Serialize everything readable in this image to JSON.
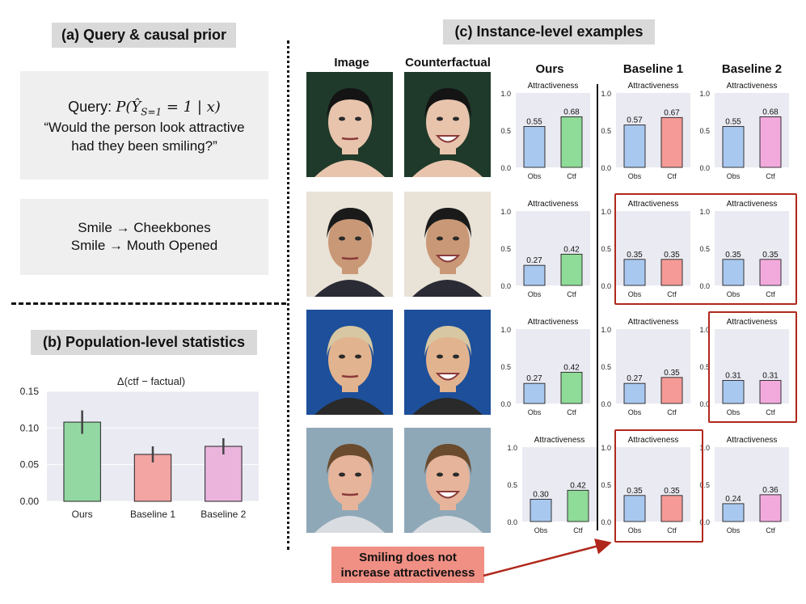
{
  "panel_a": {
    "title": "(a) Query & causal prior",
    "query_label": "Query:",
    "query_formula": "P(Ŷ",
    "query_subscript": "S=1",
    "query_rest": " = 1 | x)",
    "question_line1": "“Would the person look attractive",
    "question_line2": "had they been smiling?”",
    "prior_line1": "Smile → Cheekbones",
    "prior_line2": "Smile → Mouth Opened"
  },
  "panel_b": {
    "title": "(b) Population-level statistics"
  },
  "panel_c": {
    "title": "(c) Instance-level examples",
    "col_image": "Image",
    "col_counterfactual": "Counterfactual",
    "col_ours": "Ours",
    "col_baseline1": "Baseline 1",
    "col_baseline2": "Baseline 2"
  },
  "note": {
    "line1": "Smiling does not",
    "line2": "increase attractiveness"
  },
  "colors": {
    "obs": "#a9c8ef",
    "ours": "#8fdb98",
    "baseline1": "#f59a97",
    "baseline2": "#f2aadd",
    "pop_ours": "#93d8a2",
    "pop_b1": "#f2a5a3",
    "pop_b2": "#eab4dd",
    "panel_bg": "#eaeaf2",
    "highlight": "#b0281c"
  },
  "chart_data": [
    {
      "type": "bar",
      "title": "Δ(ctf − factual)",
      "categories": [
        "Ours",
        "Baseline 1",
        "Baseline 2"
      ],
      "values": [
        0.108,
        0.064,
        0.075
      ],
      "errors": [
        0.016,
        0.011,
        0.011
      ],
      "yticks": [
        "0.00",
        "0.05",
        "0.10",
        "0.15"
      ],
      "ylim": [
        0,
        0.15
      ],
      "grid": true
    },
    {
      "type": "bar",
      "title": "Attractiveness",
      "rows": [
        {
          "ours": {
            "obs": 0.55,
            "ctf": 0.68
          },
          "baseline1": {
            "obs": 0.57,
            "ctf": 0.67
          },
          "baseline2": {
            "obs": 0.55,
            "ctf": 0.68
          }
        },
        {
          "ours": {
            "obs": 0.27,
            "ctf": 0.42
          },
          "baseline1": {
            "obs": 0.35,
            "ctf": 0.35
          },
          "baseline2": {
            "obs": 0.35,
            "ctf": 0.35
          }
        },
        {
          "ours": {
            "obs": 0.27,
            "ctf": 0.42
          },
          "baseline1": {
            "obs": 0.27,
            "ctf": 0.35
          },
          "baseline2": {
            "obs": 0.31,
            "ctf": 0.31
          }
        },
        {
          "ours": {
            "obs": 0.3,
            "ctf": 0.42
          },
          "baseline1": {
            "obs": 0.35,
            "ctf": 0.35
          },
          "baseline2": {
            "obs": 0.24,
            "ctf": 0.36
          }
        }
      ],
      "categories": [
        "Obs",
        "Ctf"
      ],
      "yticks": [
        "0.0",
        "0.5",
        "1.0"
      ],
      "ylim": [
        0,
        1
      ]
    }
  ]
}
